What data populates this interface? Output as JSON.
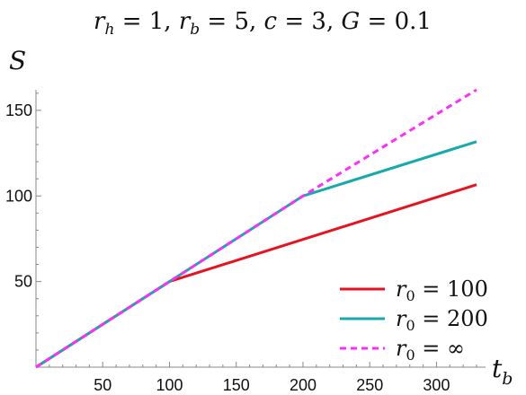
{
  "chart_data": {
    "type": "line",
    "title": "r_h = 1, r_b = 5, c = 3, G = 0.1",
    "title_parts": [
      {
        "text": "r",
        "style": "italic"
      },
      {
        "text": "h",
        "style": "sub"
      },
      {
        "text": " = 1, ",
        "style": "upright"
      },
      {
        "text": "r",
        "style": "italic"
      },
      {
        "text": "b",
        "style": "sub"
      },
      {
        "text": " = 5, ",
        "style": "upright"
      },
      {
        "text": "c",
        "style": "italic"
      },
      {
        "text": " = 3, ",
        "style": "upright"
      },
      {
        "text": "G",
        "style": "italic"
      },
      {
        "text": " = 0.1",
        "style": "upright"
      }
    ],
    "xlabel": "t_b",
    "xlabel_main": "t",
    "xlabel_sub": "b",
    "ylabel": "S",
    "xlim": [
      0,
      330
    ],
    "ylim": [
      0,
      162
    ],
    "x_ticks": [
      50,
      100,
      150,
      200,
      250,
      300
    ],
    "y_ticks": [
      50,
      100,
      150
    ],
    "legend_position": "bottom-right",
    "series": [
      {
        "name": "r_0 = 100",
        "legend_sub": "0",
        "legend_rest": " = 100",
        "color": "#e8121e",
        "style": "solid",
        "x": [
          0,
          100,
          330
        ],
        "y": [
          0,
          50,
          106.6
        ]
      },
      {
        "name": "r_0 = 200",
        "legend_sub": "0",
        "legend_rest": " = 200",
        "color": "#17aaaa",
        "style": "solid",
        "x": [
          0,
          200,
          330
        ],
        "y": [
          0,
          100,
          131.7
        ]
      },
      {
        "name": "r_0 = ∞",
        "legend_sub": "0",
        "legend_rest": " = ∞",
        "color": "#ff2bff",
        "style": "dashed",
        "x": [
          0,
          200,
          330
        ],
        "y": [
          0,
          100,
          162
        ]
      }
    ]
  }
}
